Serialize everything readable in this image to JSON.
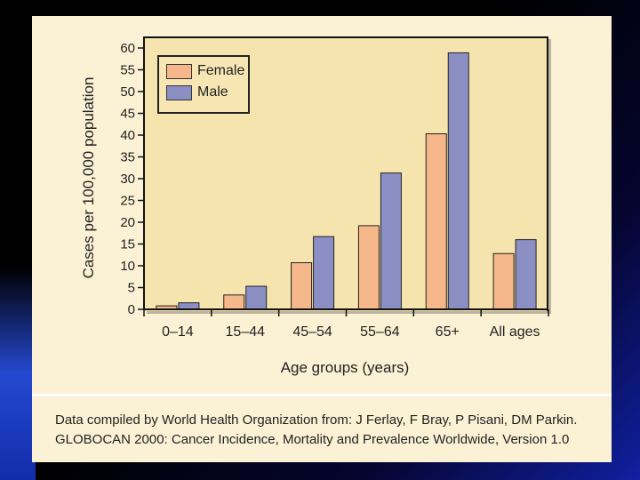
{
  "colors": {
    "female": "#f6b78a",
    "male": "#8b8fc4",
    "card": "#fbf1d4",
    "plot": "#f6e4ae"
  },
  "chart_data": {
    "type": "bar",
    "title": "",
    "xlabel": "Age groups (years)",
    "ylabel": "Cases per 100,000 population",
    "ylim": [
      0,
      60
    ],
    "yticks": [
      0,
      5,
      10,
      15,
      20,
      25,
      30,
      35,
      40,
      45,
      50,
      55,
      60
    ],
    "categories": [
      "0–14",
      "15–44",
      "45–54",
      "55–64",
      "65+",
      "All ages"
    ],
    "series": [
      {
        "name": "Female",
        "values": [
          0.8,
          3.3,
          10.7,
          19.2,
          40.3,
          12.8
        ]
      },
      {
        "name": "Male",
        "values": [
          1.5,
          5.3,
          16.7,
          31.3,
          58.9,
          16.0
        ]
      }
    ],
    "legend": "top-left"
  },
  "source": {
    "line1": "Data compiled by World Health Organization from: J Ferlay, F Bray, P Pisani, DM Parkin.",
    "line2": "GLOBOCAN 2000: Cancer Incidence, Mortality and Prevalence Worldwide, Version 1.0"
  }
}
